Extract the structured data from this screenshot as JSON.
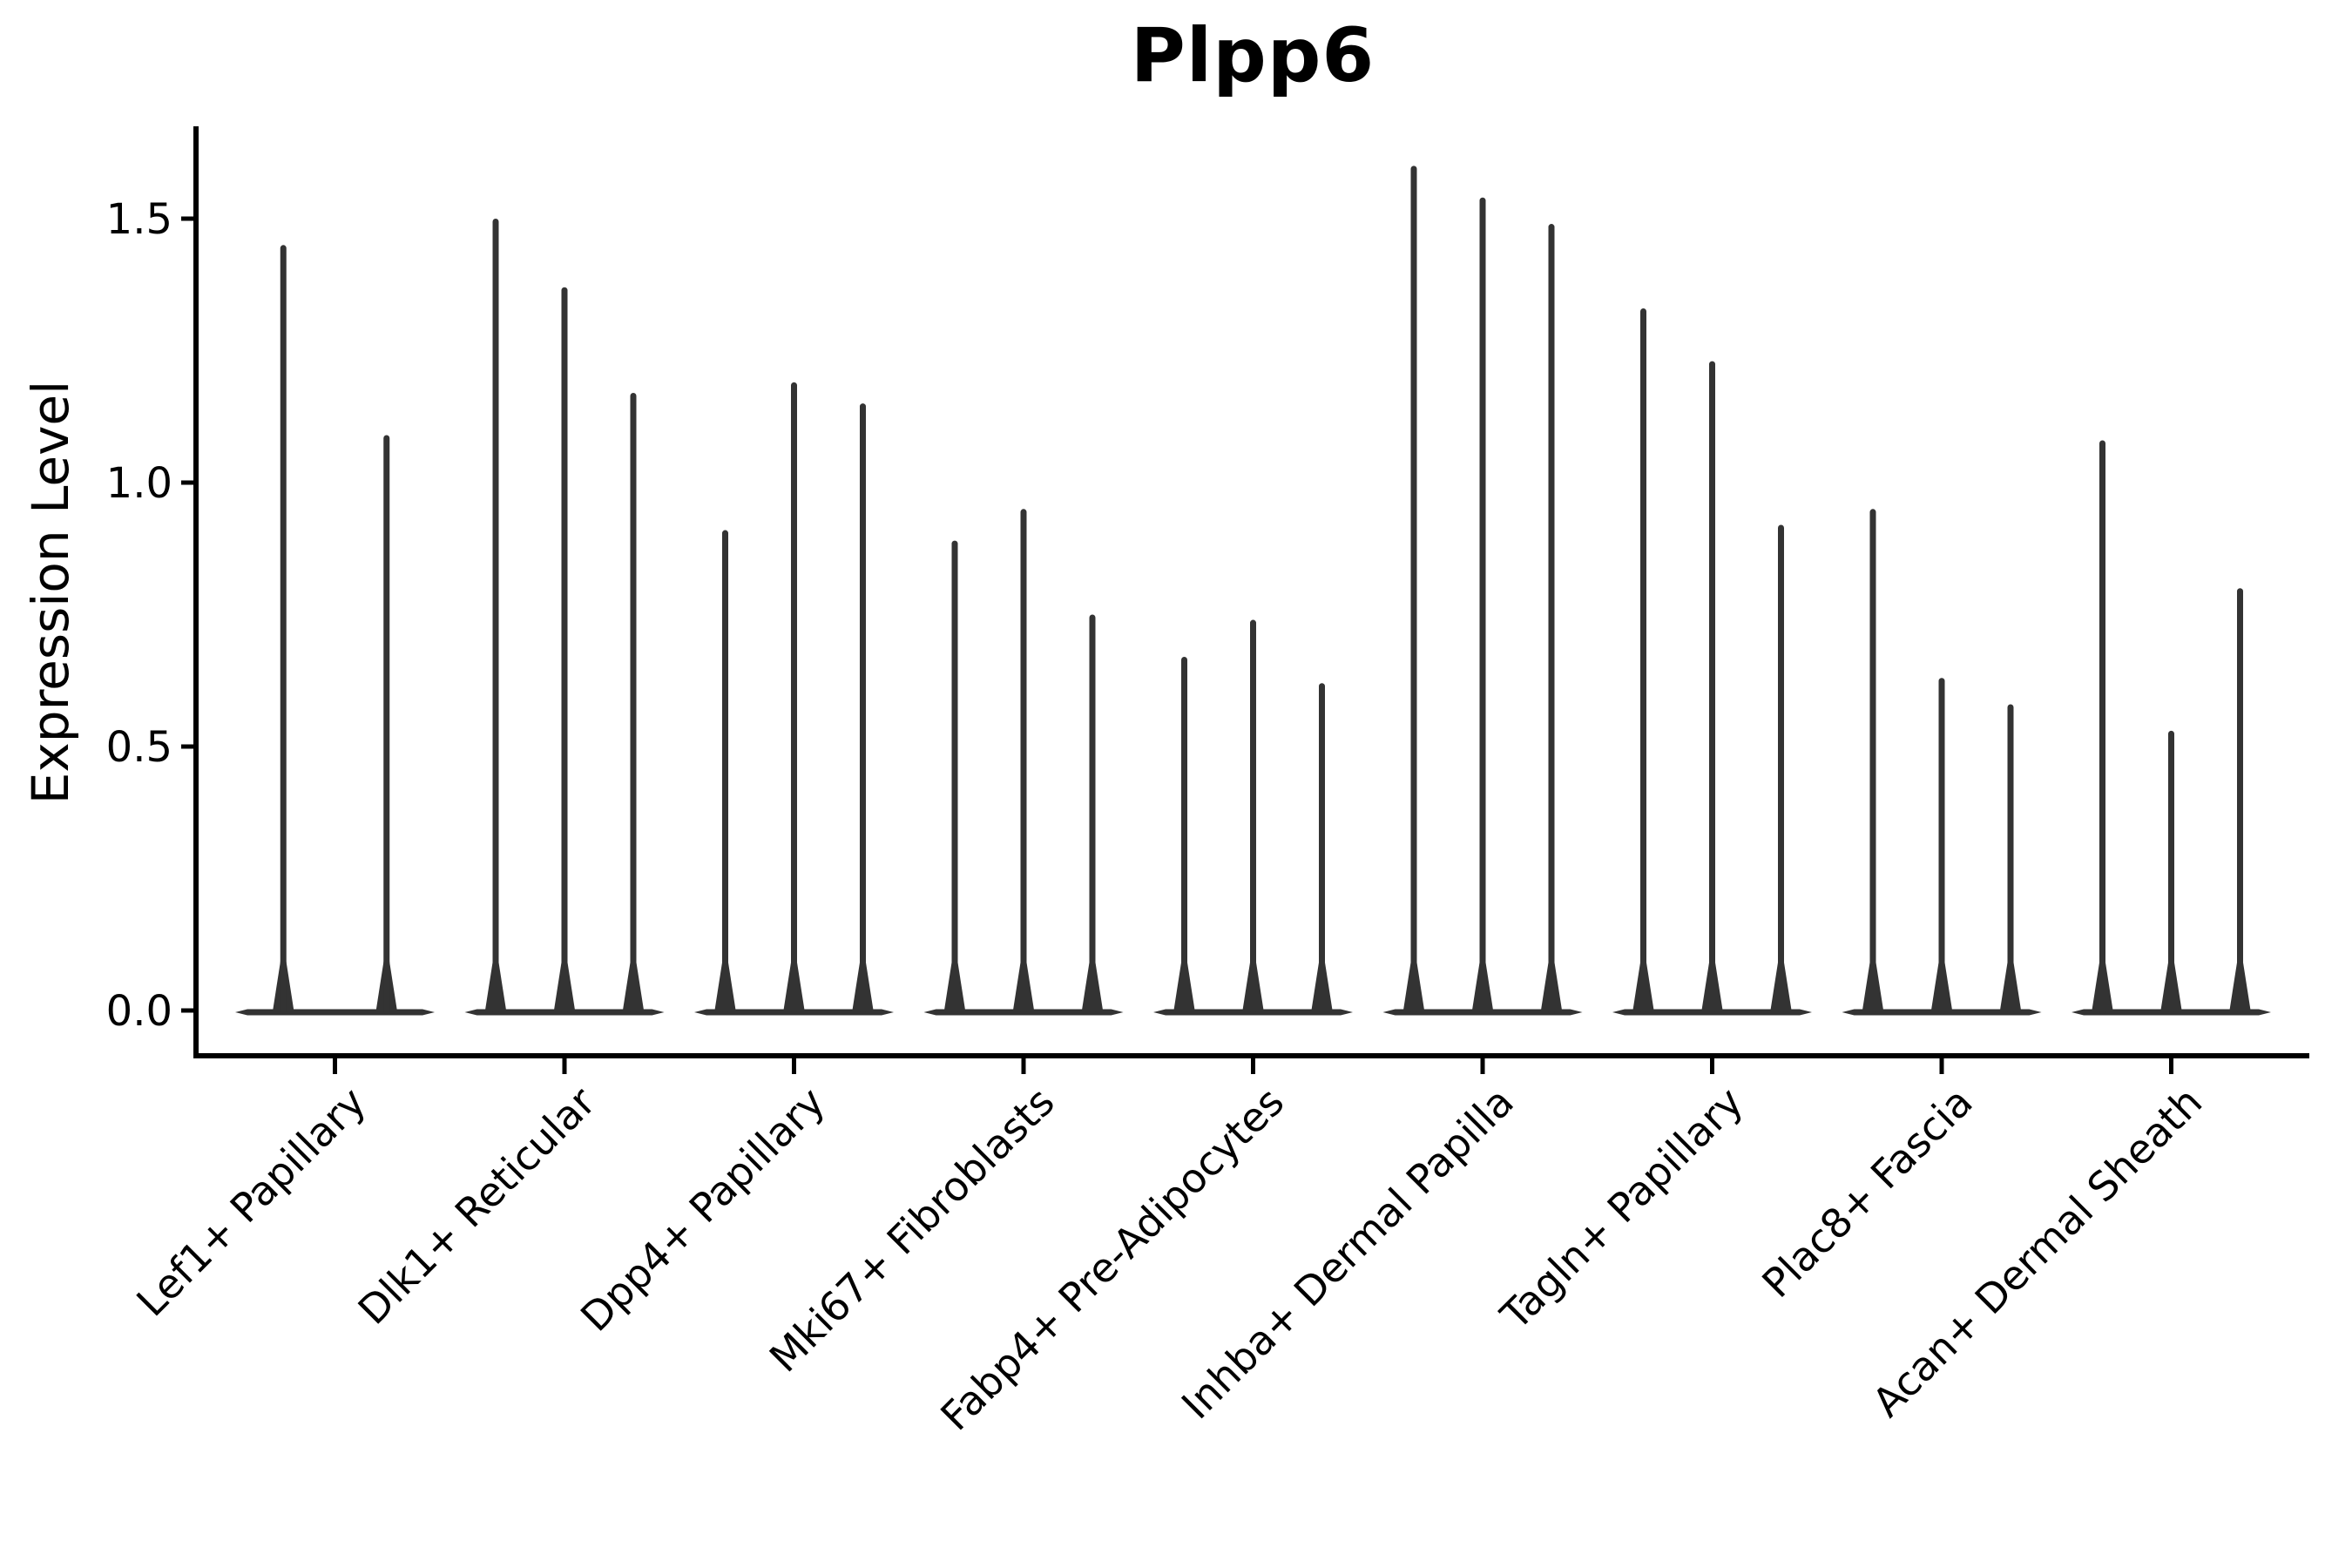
{
  "chart_data": {
    "type": "violin",
    "title": "Plpp6",
    "ylabel": "Expression Level",
    "xlabel": "",
    "ylim": [
      -0.09,
      1.68
    ],
    "grid": false,
    "legend_position": "none",
    "yticks": {
      "values": [
        0.0,
        0.5,
        1.0,
        1.5
      ],
      "labels": [
        "0.0",
        "0.5",
        "1.0",
        "1.5"
      ]
    },
    "description": "Single-cell expression violin plot; each category shows narrow spike violins whose mass sits at 0 with thin tails reaching the listed maximum expression value.",
    "categories": [
      "Lef1+ Papillary",
      "Dlk1+ Reticular",
      "Dpp4+ Papillary",
      "Mki67+ Fibroblasts",
      "Fabp4+ Pre-Adipocytes",
      "Inhba+ Dermal Papilla",
      "Tagln+ Papillary",
      "Plac8+ Fascia",
      "Acan+ Dermal Sheath"
    ],
    "violins": [
      {
        "category": "Lef1+ Papillary",
        "spike_max_values": [
          1.45,
          1.09
        ]
      },
      {
        "category": "Dlk1+ Reticular",
        "spike_max_values": [
          1.5,
          1.37,
          1.17
        ]
      },
      {
        "category": "Dpp4+ Papillary",
        "spike_max_values": [
          0.91,
          1.19,
          1.15
        ]
      },
      {
        "category": "Mki67+ Fibroblasts",
        "spike_max_values": [
          0.89,
          0.95,
          0.75
        ]
      },
      {
        "category": "Fabp4+ Pre-Adipocytes",
        "spike_max_values": [
          0.67,
          0.74,
          0.62
        ]
      },
      {
        "category": "Inhba+ Dermal Papilla",
        "spike_max_values": [
          1.6,
          1.54,
          1.49
        ]
      },
      {
        "category": "Tagln+ Papillary",
        "spike_max_values": [
          1.33,
          1.23,
          0.92
        ]
      },
      {
        "category": "Plac8+ Fascia",
        "spike_max_values": [
          0.95,
          0.63,
          0.58
        ]
      },
      {
        "category": "Acan+ Dermal Sheath",
        "spike_max_values": [
          1.08,
          0.53,
          0.8
        ]
      }
    ],
    "baseline_value": 0.0
  },
  "colors": {
    "violin": "#333333",
    "axis": "#000000",
    "text": "#000000",
    "background": "#ffffff"
  }
}
